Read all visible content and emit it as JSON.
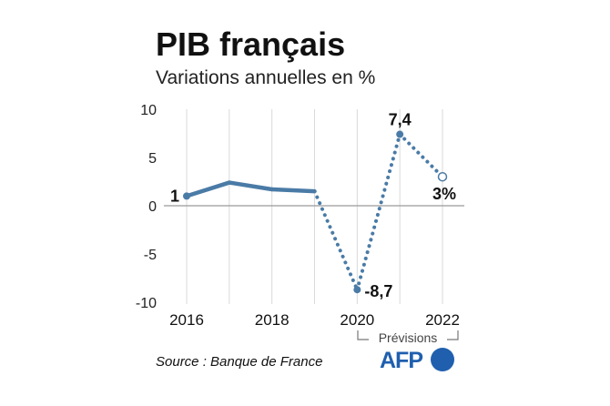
{
  "title": "PIB français",
  "subtitle": "Variations annuelles en %",
  "source": "Source : Banque de France",
  "logo": {
    "text": "AFP",
    "color": "#1f5fae"
  },
  "forecast_note": "Prévisions",
  "colors": {
    "line": "#4a7ba6",
    "grid": "#d9d9d9",
    "zero": "#9a9a9a"
  },
  "chart_data": {
    "type": "line",
    "x": [
      2016,
      2017,
      2018,
      2019,
      2020,
      2021,
      2022
    ],
    "values": [
      1,
      2.4,
      1.7,
      1.5,
      -8.7,
      7.4,
      3
    ],
    "line_style": [
      "solid",
      "solid",
      "solid",
      "dotted",
      "dotted",
      "dotted"
    ],
    "ylim": [
      -10,
      10
    ],
    "yticks": [
      10,
      5,
      0,
      -5,
      -10
    ],
    "ytick_labels": [
      "10",
      "5",
      "0",
      "-5",
      "-10"
    ],
    "xticks": [
      2016,
      2018,
      2020,
      2022
    ],
    "xtick_labels": [
      "2016",
      "2018",
      "2020",
      "2022"
    ],
    "data_labels": [
      {
        "x": 2016,
        "text": "1"
      },
      {
        "x": 2020,
        "text": "-8,7"
      },
      {
        "x": 2021,
        "text": "7,4"
      },
      {
        "x": 2022,
        "text": "3%"
      }
    ],
    "forecast_range": [
      2020,
      2022
    ],
    "grid": "vertical"
  }
}
